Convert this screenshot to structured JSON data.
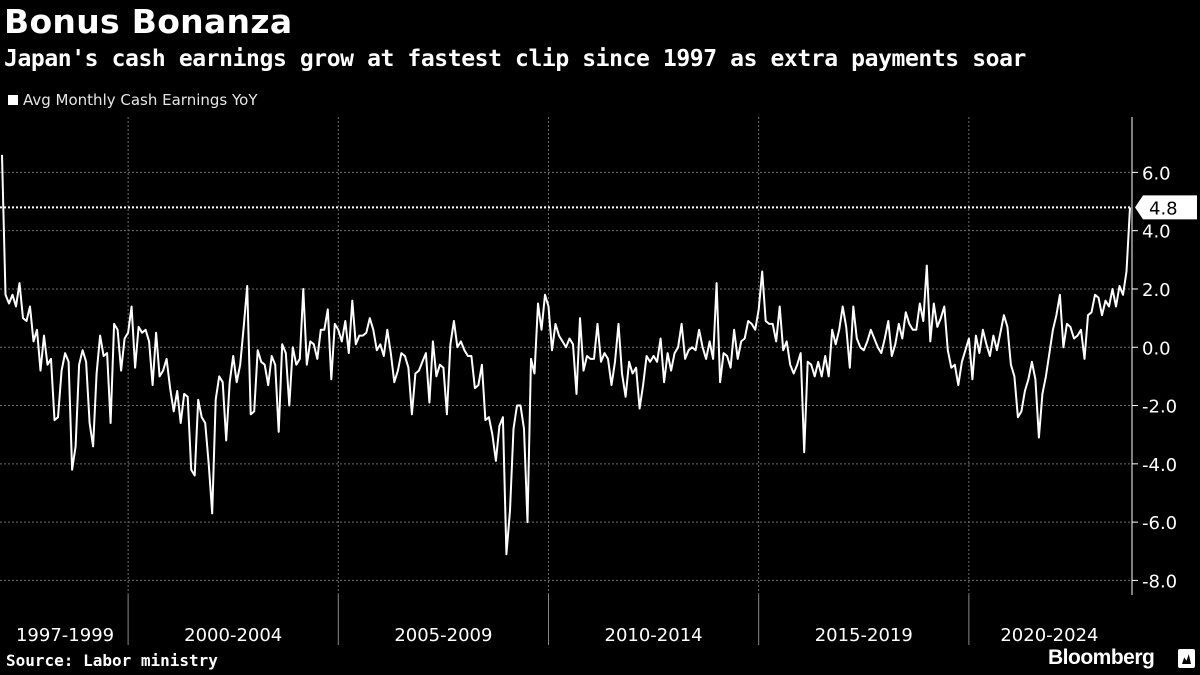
{
  "header": {
    "title": "Bonus Bonanza",
    "subtitle": "Japan's cash earnings grow at fastest clip since 1997 as extra payments soar"
  },
  "footer": {
    "source": "Source: Labor ministry",
    "brand": "Bloomberg"
  },
  "colors": {
    "background": "#000000",
    "line": "#ffffff",
    "grid": "#6e6e6e"
  },
  "chart_data": {
    "type": "line",
    "title": "Bonus Bonanza",
    "subtitle": "Japan's cash earnings grow at fastest clip since 1997 as extra payments soar",
    "legend": [
      "Avg Monthly Cash Earnings YoY"
    ],
    "legend_position": "top-left",
    "ylim": [
      -8.5,
      7.9
    ],
    "yticks": [
      "6.0",
      "4.0",
      "2.0",
      "0.0",
      "-2.0",
      "-4.0",
      "-6.0",
      "-8.0"
    ],
    "y_axis_side": "right",
    "grid": true,
    "x_periods": [
      "1997-1999",
      "2000-2004",
      "2005-2009",
      "2010-2014",
      "2015-2019",
      "2020-2024"
    ],
    "x_period_months": [
      36,
      60,
      60,
      60,
      60,
      59
    ],
    "latest_value_label": "4.8",
    "reference_line_value": 4.8,
    "series": [
      {
        "name": "Avg Monthly Cash Earnings YoY",
        "start": "1997-01",
        "values": [
          6.6,
          1.8,
          1.5,
          1.8,
          1.4,
          2.2,
          1.0,
          0.9,
          1.4,
          0.2,
          0.6,
          -0.8,
          0.4,
          -0.6,
          -0.4,
          -2.5,
          -2.4,
          -0.8,
          -0.2,
          -0.5,
          -4.2,
          -3.4,
          -0.6,
          -0.1,
          -0.5,
          -2.6,
          -3.4,
          -0.9,
          0.4,
          -0.3,
          -0.2,
          -2.6,
          0.8,
          0.6,
          -0.8,
          0.3,
          0.5,
          1.4,
          -0.7,
          0.7,
          0.5,
          0.6,
          0.2,
          -1.3,
          0.5,
          -1.0,
          -0.8,
          -0.4,
          -1.4,
          -2.2,
          -1.5,
          -2.6,
          -1.6,
          -1.7,
          -4.2,
          -4.4,
          -1.8,
          -2.4,
          -2.6,
          -4.0,
          -5.7,
          -1.8,
          -1.0,
          -1.2,
          -3.2,
          -1.2,
          -0.3,
          -1.2,
          -0.6,
          0.7,
          2.1,
          -2.3,
          -2.2,
          -0.1,
          -0.5,
          -0.6,
          -1.3,
          -0.3,
          -0.6,
          -2.9,
          0.1,
          -0.2,
          -2.0,
          0.0,
          -0.6,
          -0.4,
          2.0,
          -0.6,
          0.2,
          0.1,
          -0.4,
          0.6,
          0.6,
          1.3,
          -1.1,
          0.8,
          0.6,
          0.2,
          0.9,
          -0.2,
          1.6,
          0.1,
          0.4,
          0.4,
          0.5,
          1.0,
          0.6,
          -0.1,
          0.1,
          -0.3,
          0.6,
          -0.2,
          -1.2,
          -0.8,
          -0.2,
          -0.3,
          -0.7,
          -2.3,
          -0.9,
          -0.8,
          -0.5,
          -0.2,
          -1.9,
          0.2,
          -1.0,
          -0.6,
          -0.7,
          -2.3,
          0.1,
          0.9,
          0.0,
          0.2,
          -0.1,
          -0.3,
          -0.3,
          -1.4,
          -1.3,
          -0.6,
          -2.5,
          -2.4,
          -3.0,
          -3.9,
          -2.7,
          -2.4,
          -7.1,
          -5.6,
          -2.8,
          -2.0,
          -2.0,
          -2.8,
          -6.0,
          -0.4,
          -0.9,
          1.5,
          0.6,
          1.8,
          1.4,
          -0.1,
          0.8,
          0.4,
          0.2,
          0.0,
          0.3,
          0.1,
          -1.6,
          1.0,
          -0.8,
          -0.3,
          -0.4,
          -0.4,
          0.8,
          -0.5,
          -0.2,
          -0.4,
          -1.3,
          -0.5,
          0.8,
          -0.9,
          -1.7,
          -0.5,
          -0.9,
          -0.7,
          -2.1,
          -1.3,
          -0.3,
          -0.5,
          -0.3,
          -0.5,
          0.3,
          -1.2,
          -0.2,
          -0.8,
          -0.2,
          0.0,
          0.8,
          -0.4,
          -0.1,
          0.0,
          -0.1,
          0.6,
          0.0,
          -0.4,
          0.2,
          -0.4,
          2.2,
          -1.2,
          -0.2,
          -0.3,
          -0.7,
          0.6,
          -0.4,
          0.2,
          0.3,
          0.9,
          0.8,
          0.6,
          1.3,
          2.6,
          0.9,
          0.8,
          0.8,
          0.2,
          1.4,
          -0.1,
          0.2,
          -0.6,
          -0.9,
          -0.6,
          -0.2,
          -3.6,
          -0.5,
          -0.6,
          -1.0,
          -0.5,
          -1.0,
          -0.3,
          -1.0,
          0.6,
          0.1,
          0.6,
          1.4,
          0.7,
          -0.7,
          1.4,
          0.3,
          0.0,
          -0.1,
          0.2,
          0.6,
          0.3,
          0.0,
          -0.2,
          0.3,
          0.9,
          -0.3,
          0.1,
          0.8,
          0.3,
          1.2,
          0.8,
          0.6,
          0.6,
          1.5,
          0.9,
          2.8,
          0.2,
          1.5,
          0.7,
          1.0,
          1.4,
          -0.1,
          -0.7,
          -0.6,
          -1.3,
          -0.5,
          -0.1,
          0.3,
          -1.1,
          0.4,
          -0.2,
          0.6,
          0.1,
          -0.3,
          0.4,
          -0.1,
          0.5,
          1.1,
          0.7,
          -0.6,
          -1.0,
          -2.4,
          -2.2,
          -1.5,
          -1.1,
          -0.5,
          -1.1,
          -3.1,
          -1.6,
          -1.0,
          -0.2,
          0.6,
          1.1,
          1.8,
          0.0,
          0.8,
          0.7,
          0.3,
          0.4,
          0.6,
          -0.4,
          1.1,
          1.2,
          1.8,
          1.7,
          1.1,
          1.6,
          1.4,
          2.0,
          1.4,
          2.1,
          1.8,
          2.6,
          4.8
        ]
      }
    ]
  }
}
